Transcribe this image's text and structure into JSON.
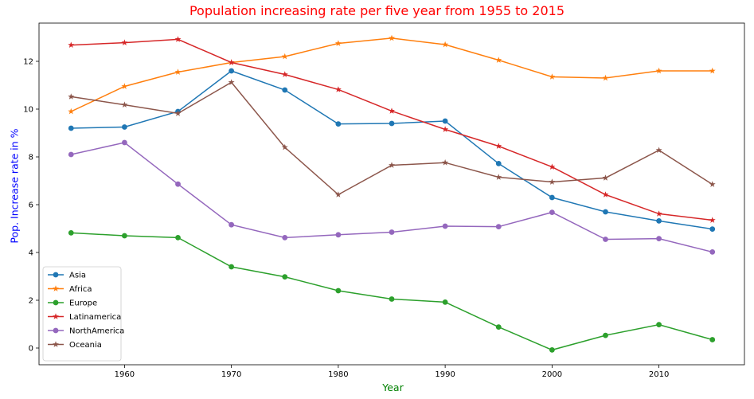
{
  "chart_data": {
    "type": "line",
    "title": "Population increasing rate per five year from 1955 to 2015",
    "xlabel": "Year",
    "ylabel": "Pop. Increase rate in %",
    "title_color": "#ff0000",
    "xlabel_color": "#008000",
    "ylabel_color": "#0000ff",
    "x": [
      1955,
      1960,
      1965,
      1970,
      1975,
      1980,
      1985,
      1990,
      1995,
      2000,
      2005,
      2010,
      2015
    ],
    "xticks": [
      1960,
      1970,
      1980,
      1990,
      2000,
      2010
    ],
    "yticks": [
      0,
      2,
      4,
      6,
      8,
      10,
      12
    ],
    "xlim": [
      1952,
      2018
    ],
    "ylim": [
      -0.7,
      13.6
    ],
    "grid": false,
    "legend_position": "lower left",
    "series": [
      {
        "name": "Asia",
        "color": "#1f77b4",
        "marker": "circle",
        "values": [
          9.2,
          9.25,
          9.9,
          11.6,
          10.8,
          9.38,
          9.4,
          9.5,
          7.72,
          6.3,
          5.7,
          5.32,
          4.98
        ]
      },
      {
        "name": "Africa",
        "color": "#ff7f0e",
        "marker": "star",
        "values": [
          9.9,
          10.95,
          11.55,
          11.95,
          12.2,
          12.75,
          12.97,
          12.7,
          12.05,
          11.35,
          11.3,
          11.6,
          11.6
        ]
      },
      {
        "name": "Europe",
        "color": "#2ca02c",
        "marker": "circle",
        "values": [
          4.82,
          4.7,
          4.62,
          3.4,
          2.98,
          2.4,
          2.05,
          1.92,
          0.88,
          -0.08,
          0.53,
          0.98,
          0.35
        ]
      },
      {
        "name": "Latinamerica",
        "color": "#d62728",
        "marker": "star",
        "values": [
          12.68,
          12.78,
          12.92,
          11.95,
          11.45,
          10.82,
          9.92,
          9.15,
          8.45,
          7.58,
          6.42,
          5.62,
          5.35
        ]
      },
      {
        "name": "NorthAmerica",
        "color": "#9467bd",
        "marker": "circle",
        "values": [
          8.1,
          8.6,
          6.86,
          5.16,
          4.62,
          4.74,
          4.85,
          5.1,
          5.08,
          5.68,
          4.55,
          4.58,
          4.02
        ]
      },
      {
        "name": "Oceania",
        "color": "#8c564b",
        "marker": "star",
        "values": [
          10.52,
          10.18,
          9.82,
          11.12,
          8.4,
          6.42,
          7.65,
          7.76,
          7.15,
          6.95,
          7.12,
          8.28,
          6.85
        ]
      }
    ]
  }
}
